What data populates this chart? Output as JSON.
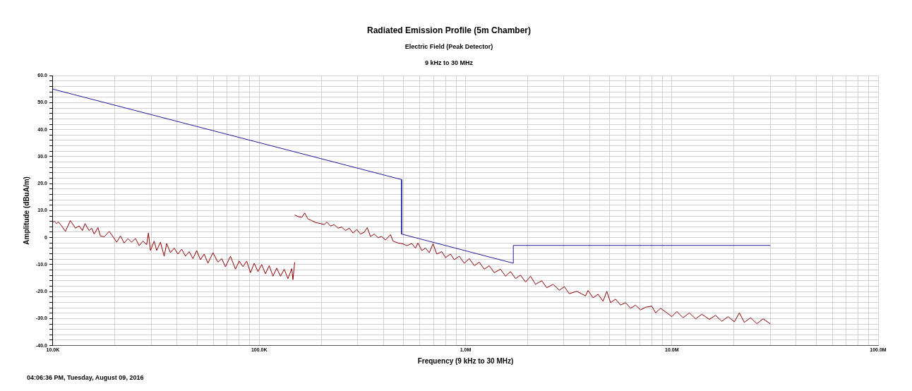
{
  "chart_data": {
    "type": "line",
    "title": "Radiated Emission Profile (5m Chamber)",
    "subtitle": "Electric Field (Peak Detector)\n9 kHz to 30 MHz",
    "xlabel": "Frequency (9 kHz to 30 MHz)",
    "ylabel": "Amplitude (dBuA/m)",
    "annotations": [
      "04:06:36 PM, Tuesday, August 09, 2016"
    ],
    "log": "x",
    "grid": true,
    "legend": false,
    "xlim": [
      10000,
      100000000
    ],
    "xticks": [
      {
        "value": 10000,
        "label": "10.0K"
      },
      {
        "value": 20000,
        "label": null
      },
      {
        "value": 30000,
        "label": null
      },
      {
        "value": 40000,
        "label": null
      },
      {
        "value": 50000,
        "label": null
      },
      {
        "value": 60000,
        "label": null
      },
      {
        "value": 70000,
        "label": null
      },
      {
        "value": 80000,
        "label": null
      },
      {
        "value": 90000,
        "label": null
      },
      {
        "value": 100000,
        "label": "100.0K"
      },
      {
        "value": 200000,
        "label": null
      },
      {
        "value": 300000,
        "label": null
      },
      {
        "value": 400000,
        "label": null
      },
      {
        "value": 500000,
        "label": null
      },
      {
        "value": 600000,
        "label": null
      },
      {
        "value": 700000,
        "label": null
      },
      {
        "value": 800000,
        "label": null
      },
      {
        "value": 900000,
        "label": null
      },
      {
        "value": 1000000,
        "label": "1.0M"
      },
      {
        "value": 2000000,
        "label": null
      },
      {
        "value": 3000000,
        "label": null
      },
      {
        "value": 4000000,
        "label": null
      },
      {
        "value": 5000000,
        "label": null
      },
      {
        "value": 6000000,
        "label": null
      },
      {
        "value": 7000000,
        "label": null
      },
      {
        "value": 8000000,
        "label": null
      },
      {
        "value": 9000000,
        "label": null
      },
      {
        "value": 10000000,
        "label": "10.0M"
      },
      {
        "value": 20000000,
        "label": null
      },
      {
        "value": 30000000,
        "label": null
      },
      {
        "value": 40000000,
        "label": null
      },
      {
        "value": 50000000,
        "label": null
      },
      {
        "value": 60000000,
        "label": null
      },
      {
        "value": 70000000,
        "label": null
      },
      {
        "value": 80000000,
        "label": null
      },
      {
        "value": 90000000,
        "label": null
      },
      {
        "value": 100000000,
        "label": "100.0M"
      }
    ],
    "ylim": [
      -40,
      60
    ],
    "yticks": [
      {
        "value": -40,
        "label": "-40.0"
      },
      {
        "value": -38,
        "label": null
      },
      {
        "value": -36,
        "label": null
      },
      {
        "value": -34,
        "label": null
      },
      {
        "value": -32,
        "label": null
      },
      {
        "value": -30,
        "label": "-30.0"
      },
      {
        "value": -28,
        "label": null
      },
      {
        "value": -26,
        "label": null
      },
      {
        "value": -24,
        "label": null
      },
      {
        "value": -22,
        "label": null
      },
      {
        "value": -20,
        "label": "-20.0"
      },
      {
        "value": -18,
        "label": null
      },
      {
        "value": -16,
        "label": null
      },
      {
        "value": -14,
        "label": null
      },
      {
        "value": -12,
        "label": null
      },
      {
        "value": -10,
        "label": "-10.0"
      },
      {
        "value": -8,
        "label": null
      },
      {
        "value": -6,
        "label": null
      },
      {
        "value": -4,
        "label": null
      },
      {
        "value": -2,
        "label": null
      },
      0,
      {
        "value": 2,
        "label": null
      },
      {
        "value": 4,
        "label": null
      },
      {
        "value": 6,
        "label": null
      },
      {
        "value": 8,
        "label": null
      },
      {
        "value": 10,
        "label": "10.0"
      },
      {
        "value": 12,
        "label": null
      },
      {
        "value": 14,
        "label": null
      },
      {
        "value": 16,
        "label": null
      },
      {
        "value": 18,
        "label": null
      },
      {
        "value": 20,
        "label": "20.0"
      },
      {
        "value": 22,
        "label": null
      },
      {
        "value": 24,
        "label": null
      },
      {
        "value": 26,
        "label": null
      },
      {
        "value": 28,
        "label": null
      },
      {
        "value": 30,
        "label": "30.0"
      },
      {
        "value": 32,
        "label": null
      },
      {
        "value": 34,
        "label": null
      },
      {
        "value": 36,
        "label": null
      },
      {
        "value": 38,
        "label": null
      },
      {
        "value": 40,
        "label": "40.0"
      },
      {
        "value": 42,
        "label": null
      },
      {
        "value": 44,
        "label": null
      },
      {
        "value": 46,
        "label": null
      },
      {
        "value": 48,
        "label": null
      },
      {
        "value": 50,
        "label": "50.0"
      },
      {
        "value": 52,
        "label": null
      },
      {
        "value": 54,
        "label": null
      },
      {
        "value": 56,
        "label": null
      },
      {
        "value": 58,
        "label": null
      },
      {
        "value": 60,
        "label": "60.0"
      }
    ],
    "series": [
      {
        "color": "#1c1c9c",
        "x": [
          10000,
          490000,
          490000,
          1705000,
          1705000,
          30000000
        ],
        "values": [
          55,
          21.5,
          1.3,
          -9.5,
          -2.9,
          -2.9
        ]
      },
      {
        "color": "#8b0000",
        "x": [
          10000,
          10140,
          10430,
          10630,
          11030,
          11500,
          12150,
          12850,
          13410,
          13900,
          14300,
          14990,
          15410,
          15850,
          16530,
          16990,
          17730,
          18740,
          19540,
          20380,
          21250,
          22160,
          23100,
          24090,
          25120,
          26190,
          27320,
          28480,
          29040,
          29700,
          30970,
          31840,
          33200,
          34620,
          35600,
          37120,
          38710,
          40370,
          42100,
          43900,
          45780,
          47730,
          49770,
          51900,
          54120,
          56430,
          59680,
          63100,
          65800,
          68610,
          72550,
          76710,
          79990,
          83410,
          86970,
          90690,
          94580,
          98610,
          102800,
          107200,
          111800,
          116600,
          121600,
          126800,
          132200,
          137800,
          143800,
          145700,
          148600
        ],
        "values": [
          5.6,
          6.1,
          5.2,
          5.8,
          4.3,
          2.3,
          6.3,
          3.5,
          4.3,
          2.6,
          5.2,
          2.6,
          3.5,
          1.3,
          3.7,
          0.6,
          0.3,
          2.3,
          0.4,
          -1.7,
          0.6,
          -2.0,
          -0.4,
          -1.7,
          -0.3,
          -3.0,
          -1.3,
          -2.6,
          1.7,
          -4.8,
          -1.3,
          -4.8,
          -1.7,
          -6.9,
          -2.2,
          -5.6,
          -3.9,
          -6.1,
          -4.3,
          -6.9,
          -5.2,
          -7.8,
          -4.8,
          -8.2,
          -6.1,
          -9.5,
          -5.6,
          -9.1,
          -7.8,
          -10.8,
          -6.9,
          -11.7,
          -8.7,
          -10.8,
          -8.7,
          -13.0,
          -9.5,
          -12.6,
          -10.0,
          -13.4,
          -10.4,
          -14.3,
          -11.3,
          -14.3,
          -11.7,
          -15.2,
          -11.5,
          -15.6,
          -9.1
        ]
      },
      {
        "color": "#8b0000",
        "x": [
          148700,
          154100,
          160700,
          166200,
          172300,
          179700,
          187400,
          198200,
          206700,
          212500,
          221600,
          231100,
          241000,
          251200,
          261900,
          273200,
          284900,
          297100,
          309800,
          322900,
          334000,
          346300,
          361100,
          376600,
          392700,
          409500,
          432900,
          445200,
          470800,
          497800,
          519000,
          548800,
          572300,
          588500,
          613700,
          640000,
          667400,
          695900,
          725700,
          767400,
          800200,
          846200,
          882000,
          932600,
          986300,
          1043000,
          1103000,
          1166000,
          1233000,
          1304000,
          1378000,
          1478000,
          1563000,
          1653000,
          1748000,
          1848000,
          1954000,
          2066000,
          2185000,
          2343000,
          2477000,
          2656000,
          2848000,
          3012000,
          3185000,
          3463000,
          3819000,
          3926000,
          4151000,
          4390000,
          4642000,
          4841000,
          5048000,
          5338000,
          5645000,
          5968000,
          6310000,
          6673000,
          7055000,
          7460000,
          8002000,
          8344000,
          8819000,
          9326000,
          10000000,
          10575000,
          11340000,
          12160000,
          13040000,
          13980000,
          15200000,
          16300000,
          17480000,
          18740000,
          20100000,
          21250000,
          22470000,
          24090000,
          25840000,
          27700000,
          29710000,
          30000000
        ],
        "values": [
          8.4,
          7.8,
          7.5,
          9.1,
          6.9,
          6.3,
          5.6,
          5.2,
          4.8,
          5.8,
          4.3,
          4.8,
          3.5,
          3.9,
          2.6,
          3.5,
          1.7,
          3.0,
          1.3,
          2.0,
          3.7,
          0.4,
          1.3,
          0,
          0.4,
          -0.9,
          1.1,
          -1.3,
          -2.0,
          -2.3,
          -3.0,
          -2.2,
          -3.9,
          -2.0,
          -4.8,
          -3.9,
          -5.6,
          -2.3,
          -6.1,
          -5.2,
          -7.4,
          -6.1,
          -8.2,
          -6.9,
          -9.5,
          -7.8,
          -10.4,
          -9.1,
          -11.7,
          -10.4,
          -13.0,
          -11.7,
          -14.3,
          -12.6,
          -15.2,
          -13.9,
          -16.5,
          -14.3,
          -17.3,
          -16.0,
          -18.6,
          -17.3,
          -19.5,
          -18.2,
          -20.8,
          -19.9,
          -21.6,
          -19.6,
          -22.3,
          -21.0,
          -23.6,
          -19.9,
          -24.1,
          -22.8,
          -25.0,
          -24.1,
          -26.2,
          -25.0,
          -26.8,
          -25.8,
          -25.4,
          -27.9,
          -26.2,
          -27.5,
          -29.3,
          -27.4,
          -29.7,
          -27.9,
          -30.1,
          -28.4,
          -30.3,
          -28.8,
          -31.0,
          -29.3,
          -31.2,
          -27.9,
          -31.4,
          -29.7,
          -31.9,
          -30.1,
          -31.7,
          -32.0
        ]
      }
    ]
  }
}
